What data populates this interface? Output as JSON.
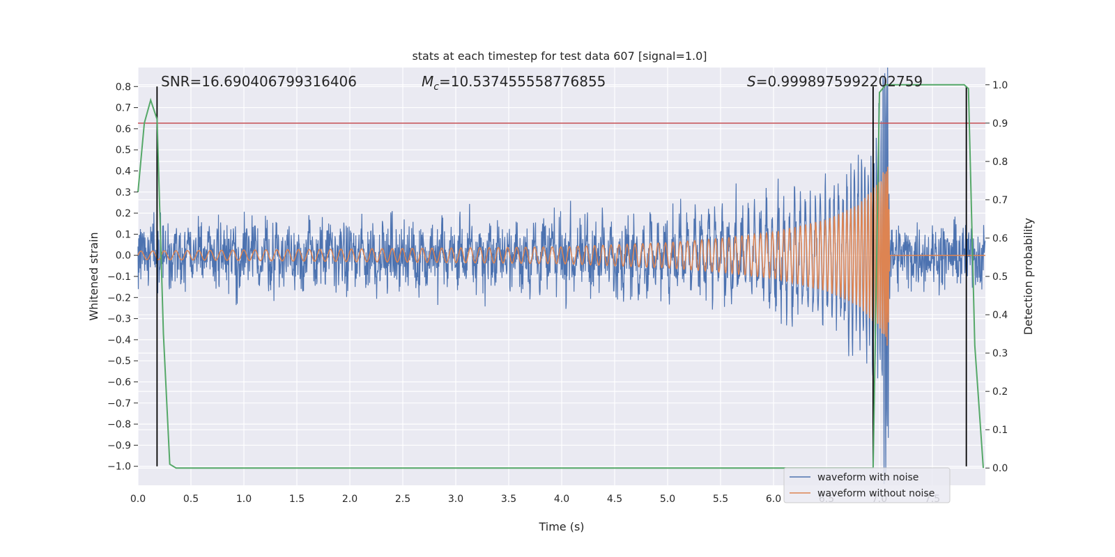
{
  "chart_data": {
    "type": "line",
    "title": "stats at each timestep for test data 607 [signal=1.0]",
    "xlabel": "Time (s)",
    "ylabel": "Whitened strain",
    "y2label": "Detection probability",
    "xlim": [
      0.0,
      8.0
    ],
    "ylim": [
      -1.09,
      0.89
    ],
    "y2lim": [
      -0.045,
      1.045
    ],
    "x_ticks": [
      "0.0",
      "0.5",
      "1.0",
      "1.5",
      "2.0",
      "2.5",
      "3.0",
      "3.5",
      "4.0",
      "4.5",
      "5.0",
      "5.5",
      "6.0",
      "6.5",
      "7.0",
      "7.5"
    ],
    "y_ticks": [
      "0.8",
      "0.7",
      "0.6",
      "0.5",
      "0.4",
      "0.3",
      "0.2",
      "0.1",
      "0.0",
      "−0.1",
      "−0.2",
      "−0.3",
      "−0.4",
      "−0.5",
      "−0.6",
      "−0.7",
      "−0.8",
      "−0.9",
      "−1.0"
    ],
    "y2_ticks": [
      "1.0",
      "0.9",
      "0.8",
      "0.7",
      "0.6",
      "0.5",
      "0.4",
      "0.3",
      "0.2",
      "0.1",
      "0.0"
    ],
    "grid": true,
    "legend_position": "lower-right",
    "annotations": {
      "snr": "SNR=16.690406799316406",
      "mc_symbol": "M",
      "mc_sub": "c",
      "mc_value": "=10.537455558776855",
      "s_symbol": "S",
      "s_value": "=0.9998975992202759"
    },
    "threshold_y2": 0.9,
    "vertical_lines_x": [
      0.18,
      6.94,
      7.82
    ],
    "series": [
      {
        "name": "waveform with noise",
        "color": "#4c72b0",
        "description_envelope": {
          "noise_amplitude": 0.2,
          "signal_peak_x": 7.08,
          "signal_peak_y": [
            -0.9,
            0.7
          ]
        }
      },
      {
        "name": "waveform without noise",
        "color": "#dd8452",
        "envelope": {
          "x": [
            0.0,
            1.0,
            2.0,
            3.0,
            4.0,
            5.0,
            5.5,
            6.0,
            6.5,
            6.8,
            7.0,
            7.08,
            7.1
          ],
          "amp": [
            0.02,
            0.025,
            0.03,
            0.035,
            0.04,
            0.06,
            0.08,
            0.11,
            0.17,
            0.24,
            0.35,
            0.45,
            0.0
          ]
        }
      },
      {
        "name": "",
        "color": "#55a868",
        "axis": "y2",
        "x": [
          0.0,
          0.06,
          0.12,
          0.18,
          0.24,
          0.3,
          0.36,
          0.42,
          6.9,
          6.94,
          7.0,
          7.06,
          7.12,
          7.8,
          7.84,
          7.9,
          7.98
        ],
        "y": [
          0.72,
          0.9,
          0.96,
          0.91,
          0.35,
          0.01,
          0.0,
          0.0,
          0.0,
          0.0,
          0.98,
          1.0,
          1.0,
          1.0,
          0.99,
          0.32,
          0.0
        ]
      },
      {
        "name": "",
        "color": "#c44e52",
        "axis": "y2",
        "x": [
          0.0,
          8.0
        ],
        "y": [
          0.9,
          0.9
        ]
      }
    ]
  }
}
